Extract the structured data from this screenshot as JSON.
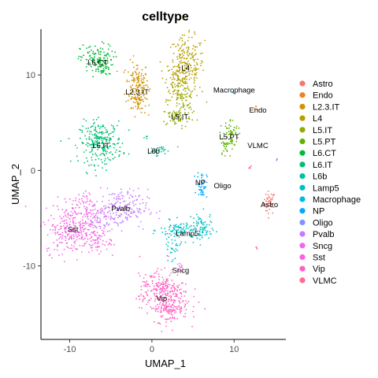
{
  "chart_data": {
    "type": "scatter",
    "title": "celltype",
    "xlabel": "UMAP_1",
    "ylabel": "UMAP_2",
    "xlim": [
      -13.5,
      16.3
    ],
    "ylim": [
      -17.7,
      14.8
    ],
    "xticks": [
      -10,
      0,
      10
    ],
    "yticks": [
      -10,
      0,
      10
    ],
    "x_tick_labels": [
      "-10",
      "0",
      "10"
    ],
    "y_tick_labels": [
      "-10",
      "0",
      "10"
    ],
    "legend_position": "right",
    "grid": false,
    "series": [
      {
        "name": "Astro",
        "color": "#F8766D",
        "label": "Astro",
        "label_pos": [
          14.3,
          -3.6
        ],
        "blobs": [
          {
            "cx": 14.3,
            "cy": -3.4,
            "sx": 0.35,
            "sy": 0.6,
            "n": 45
          }
        ]
      },
      {
        "name": "Endo",
        "color": "#E88526",
        "label": "Endo",
        "label_pos": [
          12.9,
          6.3
        ],
        "blobs": [
          {
            "cx": 12.7,
            "cy": 6.6,
            "sx": 0.12,
            "sy": 0.12,
            "n": 4
          }
        ]
      },
      {
        "name": "L2.3.IT",
        "color": "#D39200",
        "label": "L2.3.IT",
        "label_pos": [
          -1.8,
          8.2
        ],
        "blobs": [
          {
            "cx": -1.8,
            "cy": 9.0,
            "sx": 0.7,
            "sy": 1.2,
            "n": 140
          },
          {
            "cx": -1.6,
            "cy": 7.0,
            "sx": 0.45,
            "sy": 0.6,
            "n": 40
          }
        ]
      },
      {
        "name": "L4",
        "color": "#B79F00",
        "label": "L4",
        "label_pos": [
          4.1,
          10.7
        ],
        "blobs": [
          {
            "cx": 4.2,
            "cy": 11.0,
            "sx": 1.1,
            "sy": 1.5,
            "n": 220
          },
          {
            "cx": 3.2,
            "cy": 9.4,
            "sx": 0.7,
            "sy": 1.0,
            "n": 60
          }
        ]
      },
      {
        "name": "L5.IT",
        "color": "#93AA00",
        "label": "L5.IT",
        "label_pos": [
          3.4,
          5.6
        ],
        "blobs": [
          {
            "cx": 3.6,
            "cy": 7.3,
            "sx": 0.8,
            "sy": 1.2,
            "n": 90
          },
          {
            "cx": 3.0,
            "cy": 5.6,
            "sx": 0.9,
            "sy": 0.5,
            "n": 60
          }
        ]
      },
      {
        "name": "L5.PT",
        "color": "#5EB300",
        "label": "L5.PT",
        "label_pos": [
          9.4,
          3.5
        ],
        "blobs": [
          {
            "cx": 9.6,
            "cy": 3.8,
            "sx": 0.45,
            "sy": 0.8,
            "n": 70
          },
          {
            "cx": 8.8,
            "cy": 2.2,
            "sx": 0.25,
            "sy": 0.6,
            "n": 15
          }
        ]
      },
      {
        "name": "L6.CT",
        "color": "#00BA38",
        "label": "L6.CT",
        "label_pos": [
          -6.6,
          11.3
        ],
        "blobs": [
          {
            "cx": -6.7,
            "cy": 11.6,
            "sx": 1.0,
            "sy": 0.8,
            "n": 130
          },
          {
            "cx": -6.0,
            "cy": 10.5,
            "sx": 0.4,
            "sy": 0.4,
            "n": 20
          }
        ]
      },
      {
        "name": "L6.IT",
        "color": "#00BF74",
        "label": "L6.IT",
        "label_pos": [
          -6.2,
          2.6
        ],
        "blobs": [
          {
            "cx": -6.2,
            "cy": 2.9,
            "sx": 1.3,
            "sy": 1.1,
            "n": 260
          }
        ]
      },
      {
        "name": "L6b",
        "color": "#00C19F",
        "label": "L6b",
        "label_pos": [
          0.2,
          2.0
        ],
        "blobs": [
          {
            "cx": 0.6,
            "cy": 2.1,
            "sx": 0.5,
            "sy": 0.25,
            "n": 35
          },
          {
            "cx": -0.8,
            "cy": 3.4,
            "sx": 0.15,
            "sy": 0.15,
            "n": 4
          }
        ]
      },
      {
        "name": "Lamp5",
        "color": "#00BFC4",
        "label": "Lamp5",
        "label_pos": [
          4.3,
          -6.6
        ],
        "blobs": [
          {
            "cx": 3.6,
            "cy": -6.3,
            "sx": 1.3,
            "sy": 0.5,
            "n": 110
          },
          {
            "cx": 6.1,
            "cy": -6.1,
            "sx": 0.6,
            "sy": 0.8,
            "n": 70
          },
          {
            "cx": 2.4,
            "cy": -8.2,
            "sx": 0.5,
            "sy": 0.6,
            "n": 30
          }
        ]
      },
      {
        "name": "Macrophage",
        "color": "#00B8E7",
        "label": "Macrophage",
        "label_pos": [
          10.0,
          8.4
        ],
        "blobs": [
          {
            "cx": 10.0,
            "cy": 8.2,
            "sx": 0.1,
            "sy": 0.1,
            "n": 4
          }
        ]
      },
      {
        "name": "NP",
        "color": "#00A9FF",
        "label": "NP",
        "label_pos": [
          5.9,
          -1.3
        ],
        "blobs": [
          {
            "cx": 6.1,
            "cy": -1.5,
            "sx": 0.3,
            "sy": 0.7,
            "n": 45
          }
        ]
      },
      {
        "name": "Oligo",
        "color": "#8494FF",
        "label": "Oligo",
        "label_pos": [
          8.6,
          -1.6
        ],
        "blobs": [
          {
            "cx": 15.2,
            "cy": 1.2,
            "sx": 0.08,
            "sy": 0.15,
            "n": 3
          }
        ]
      },
      {
        "name": "Pvalb",
        "color": "#C77CFF",
        "label": "Pvalb",
        "label_pos": [
          -3.8,
          -4.0
        ],
        "blobs": [
          {
            "cx": -3.9,
            "cy": -4.0,
            "sx": 1.7,
            "sy": 1.0,
            "n": 200
          },
          {
            "cx": -6.0,
            "cy": -5.2,
            "sx": 0.8,
            "sy": 0.7,
            "n": 40
          }
        ]
      },
      {
        "name": "Sncg",
        "color": "#ED68ED",
        "label": "Sncg",
        "label_pos": [
          3.5,
          -10.5
        ],
        "blobs": [
          {
            "cx": 3.4,
            "cy": -10.2,
            "sx": 0.25,
            "sy": 0.35,
            "n": 12
          }
        ]
      },
      {
        "name": "Sst",
        "color": "#F564E3",
        "label": "Sst",
        "label_pos": [
          -9.6,
          -6.2
        ],
        "blobs": [
          {
            "cx": -9.6,
            "cy": -6.3,
            "sx": 1.7,
            "sy": 1.2,
            "n": 260
          },
          {
            "cx": -8.3,
            "cy": -4.0,
            "sx": 1.3,
            "sy": 0.8,
            "n": 90
          },
          {
            "cx": -6.6,
            "cy": -7.4,
            "sx": 0.8,
            "sy": 0.6,
            "n": 50
          }
        ]
      },
      {
        "name": "Vip",
        "color": "#FF61C3",
        "label": "Vip",
        "label_pos": [
          1.2,
          -13.4
        ],
        "blobs": [
          {
            "cx": 1.5,
            "cy": -13.3,
            "sx": 1.5,
            "sy": 1.2,
            "n": 260
          },
          {
            "cx": 0.9,
            "cy": -11.8,
            "sx": 1.0,
            "sy": 0.7,
            "n": 60
          },
          {
            "cx": 2.4,
            "cy": -14.6,
            "sx": 1.0,
            "sy": 0.7,
            "n": 60
          }
        ]
      },
      {
        "name": "VLMC",
        "color": "#FF6C91",
        "label": "VLMC",
        "label_pos": [
          12.9,
          2.6
        ],
        "blobs": [
          {
            "cx": 12.0,
            "cy": 0.5,
            "sx": 0.12,
            "sy": 0.15,
            "n": 5
          },
          {
            "cx": 12.7,
            "cy": -8.2,
            "sx": 0.08,
            "sy": 0.15,
            "n": 3
          }
        ]
      }
    ]
  }
}
